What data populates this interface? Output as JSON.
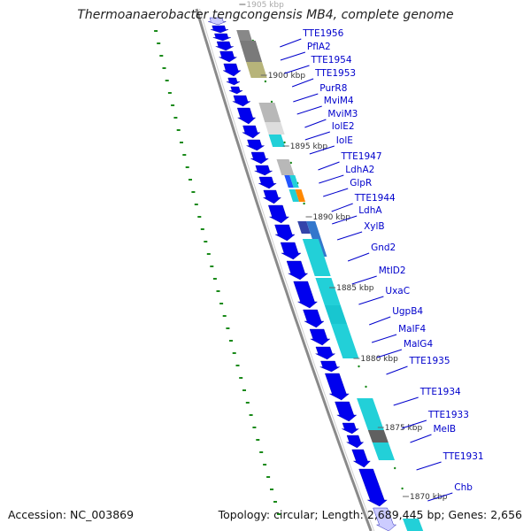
{
  "title": "Thermoanaerobacter tengcongensis MB4, complete genome",
  "accession_label": "Accession: NC_003869",
  "summary_label": "Topology: circular; Length: 2,689,445 bp; Genes: 2,656",
  "colors": {
    "gene_fwd": "#0000ee",
    "gene_light": "#ccccff",
    "backbone": "#8a8a8a",
    "label": "#0000cc",
    "gc_dots": "#1a8a1a",
    "cyan": "#22d0d8",
    "grey": "#b8b8b8",
    "dark_grey": "#606060",
    "olive": "#b7b47a",
    "orange": "#ff8800"
  },
  "scale_ticks": [
    "1905 kbp",
    "1900 kbp",
    "1895 kbp",
    "1890 kbp",
    "1885 kbp",
    "1880 kbp",
    "1875 kbp",
    "1870 kbp"
  ],
  "gene_labels": [
    "TTE1956",
    "PflA2",
    "TTE1954",
    "TTE1953",
    "PurR8",
    "MviM4",
    "MviM3",
    "IolE2",
    "IolE",
    "TTE1947",
    "LdhA2",
    "GlpR",
    "TTE1944",
    "LdhA",
    "XylB",
    "Gnd2",
    "MtlD2",
    "UxaC",
    "UgpB4",
    "MalF4",
    "MalG4",
    "TTE1935",
    "TTE1934",
    "TTE1933",
    "MelB",
    "TTE1931",
    "Chb"
  ]
}
